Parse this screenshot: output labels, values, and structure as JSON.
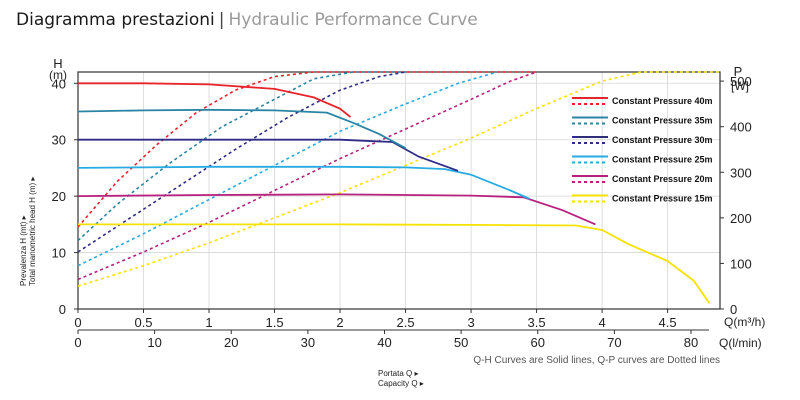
{
  "heading": {
    "title_main": "Diagramma prestazioni",
    "separator": "|",
    "title_sub": "Hydraulic Performance Curve"
  },
  "chart_data": {
    "type": "line",
    "left_axis": {
      "unit_symbol": "H",
      "unit": "(m)",
      "range": [
        0,
        42
      ],
      "ticks": [
        0,
        10,
        20,
        30,
        40
      ],
      "label_line1": "Prevalenza H (mt) ▸",
      "label_line2": "Total manometric head H (m) ▸"
    },
    "right_axis": {
      "unit_symbol": "P",
      "unit": "[W]",
      "range": [
        0,
        520
      ],
      "ticks": [
        0,
        100,
        200,
        300,
        400,
        500
      ],
      "tick_labels": [
        "0",
        "100",
        "200",
        "300",
        "400",
        "500"
      ]
    },
    "x_axis_top": {
      "unit": "Q(m³/h)",
      "range": [
        0,
        4.9
      ],
      "ticks": [
        0,
        0.5,
        1,
        1.5,
        2,
        2.5,
        3,
        3.5,
        4,
        4.5
      ],
      "tick_labels": [
        "0",
        "0.5",
        "1",
        "1.5",
        "2",
        "2.5",
        "3",
        "3.5",
        "4",
        "4.5"
      ]
    },
    "x_axis_bottom": {
      "unit": "Q(l/min)",
      "ticks": [
        0,
        10,
        20,
        30,
        40,
        50,
        60,
        70,
        80
      ],
      "tick_labels": [
        "0",
        "10",
        "20",
        "30",
        "40",
        "50",
        "60",
        "70",
        "80"
      ]
    },
    "xlabel_line1": "Portata Q ▸",
    "xlabel_line2": "Capacity Q ▸",
    "note": "Q-H Curves are Solid lines, Q-P curves are Dotted lines",
    "legend_position": "right",
    "series": [
      {
        "name": "Constant Pressure 40m",
        "color": "#e8242a",
        "qh": [
          [
            0,
            40
          ],
          [
            0.5,
            40
          ],
          [
            1.0,
            39.8
          ],
          [
            1.5,
            39
          ],
          [
            1.8,
            37.5
          ],
          [
            2.0,
            35.5
          ],
          [
            2.08,
            34
          ]
        ],
        "qp": [
          [
            0,
            180
          ],
          [
            0.3,
            280
          ],
          [
            0.6,
            360
          ],
          [
            0.9,
            430
          ],
          [
            1.2,
            480
          ],
          [
            1.5,
            510
          ],
          [
            1.8,
            520
          ],
          [
            3.5,
            520
          ]
        ]
      },
      {
        "name": "Constant Pressure 35m",
        "color": "#2a84a3",
        "qh": [
          [
            0,
            35
          ],
          [
            0.5,
            35.2
          ],
          [
            1.0,
            35.3
          ],
          [
            1.5,
            35.2
          ],
          [
            1.9,
            34.8
          ],
          [
            2.1,
            33
          ],
          [
            2.3,
            31
          ],
          [
            2.5,
            28.5
          ]
        ],
        "qp": [
          [
            0,
            150
          ],
          [
            0.3,
            230
          ],
          [
            0.7,
            320
          ],
          [
            1.1,
            400
          ],
          [
            1.5,
            460
          ],
          [
            1.8,
            505
          ],
          [
            2.1,
            520
          ],
          [
            2.5,
            520
          ]
        ]
      },
      {
        "name": "Constant Pressure 30m",
        "color": "#2e2c86",
        "qh": [
          [
            0,
            30
          ],
          [
            1.0,
            30
          ],
          [
            2.0,
            30
          ],
          [
            2.4,
            29.6
          ],
          [
            2.6,
            27
          ],
          [
            2.9,
            24.5
          ]
        ],
        "qp": [
          [
            0,
            125
          ],
          [
            0.4,
            200
          ],
          [
            0.8,
            275
          ],
          [
            1.2,
            350
          ],
          [
            1.6,
            420
          ],
          [
            2.0,
            480
          ],
          [
            2.3,
            510
          ],
          [
            2.5,
            520
          ]
        ]
      },
      {
        "name": "Constant Pressure 25m",
        "color": "#26abe2",
        "qh": [
          [
            0,
            25
          ],
          [
            1.0,
            25.2
          ],
          [
            2.0,
            25.2
          ],
          [
            2.5,
            25.1
          ],
          [
            2.8,
            24.8
          ],
          [
            3.0,
            23.8
          ],
          [
            3.3,
            21
          ],
          [
            3.45,
            19.5
          ]
        ],
        "qp": [
          [
            0,
            95
          ],
          [
            0.5,
            165
          ],
          [
            1.0,
            240
          ],
          [
            1.5,
            315
          ],
          [
            2.0,
            390
          ],
          [
            2.5,
            450
          ],
          [
            2.9,
            495
          ],
          [
            3.2,
            520
          ]
        ]
      },
      {
        "name": "Constant Pressure 20m",
        "color": "#b8207e",
        "qh": [
          [
            0,
            20
          ],
          [
            1.0,
            20.2
          ],
          [
            2.0,
            20.3
          ],
          [
            3.0,
            20.1
          ],
          [
            3.4,
            19.8
          ],
          [
            3.7,
            17.5
          ],
          [
            3.95,
            15
          ]
        ],
        "qp": [
          [
            0,
            65
          ],
          [
            0.5,
            125
          ],
          [
            1.0,
            190
          ],
          [
            1.5,
            260
          ],
          [
            2.0,
            330
          ],
          [
            2.5,
            395
          ],
          [
            3.0,
            460
          ],
          [
            3.3,
            500
          ],
          [
            3.5,
            520
          ]
        ]
      },
      {
        "name": "Constant Pressure 15m",
        "color": "#f6e200",
        "qh": [
          [
            0,
            15
          ],
          [
            1.0,
            15
          ],
          [
            2.0,
            15
          ],
          [
            3.0,
            14.9
          ],
          [
            3.8,
            14.8
          ],
          [
            4.0,
            14
          ],
          [
            4.2,
            11.5
          ],
          [
            4.5,
            8.5
          ],
          [
            4.7,
            5
          ],
          [
            4.82,
            1
          ]
        ],
        "qp": [
          [
            0,
            50
          ],
          [
            0.5,
            95
          ],
          [
            1.0,
            145
          ],
          [
            1.5,
            200
          ],
          [
            2.0,
            255
          ],
          [
            2.5,
            315
          ],
          [
            3.0,
            375
          ],
          [
            3.5,
            440
          ],
          [
            4.0,
            500
          ],
          [
            4.3,
            520
          ],
          [
            4.9,
            520
          ]
        ]
      }
    ]
  }
}
